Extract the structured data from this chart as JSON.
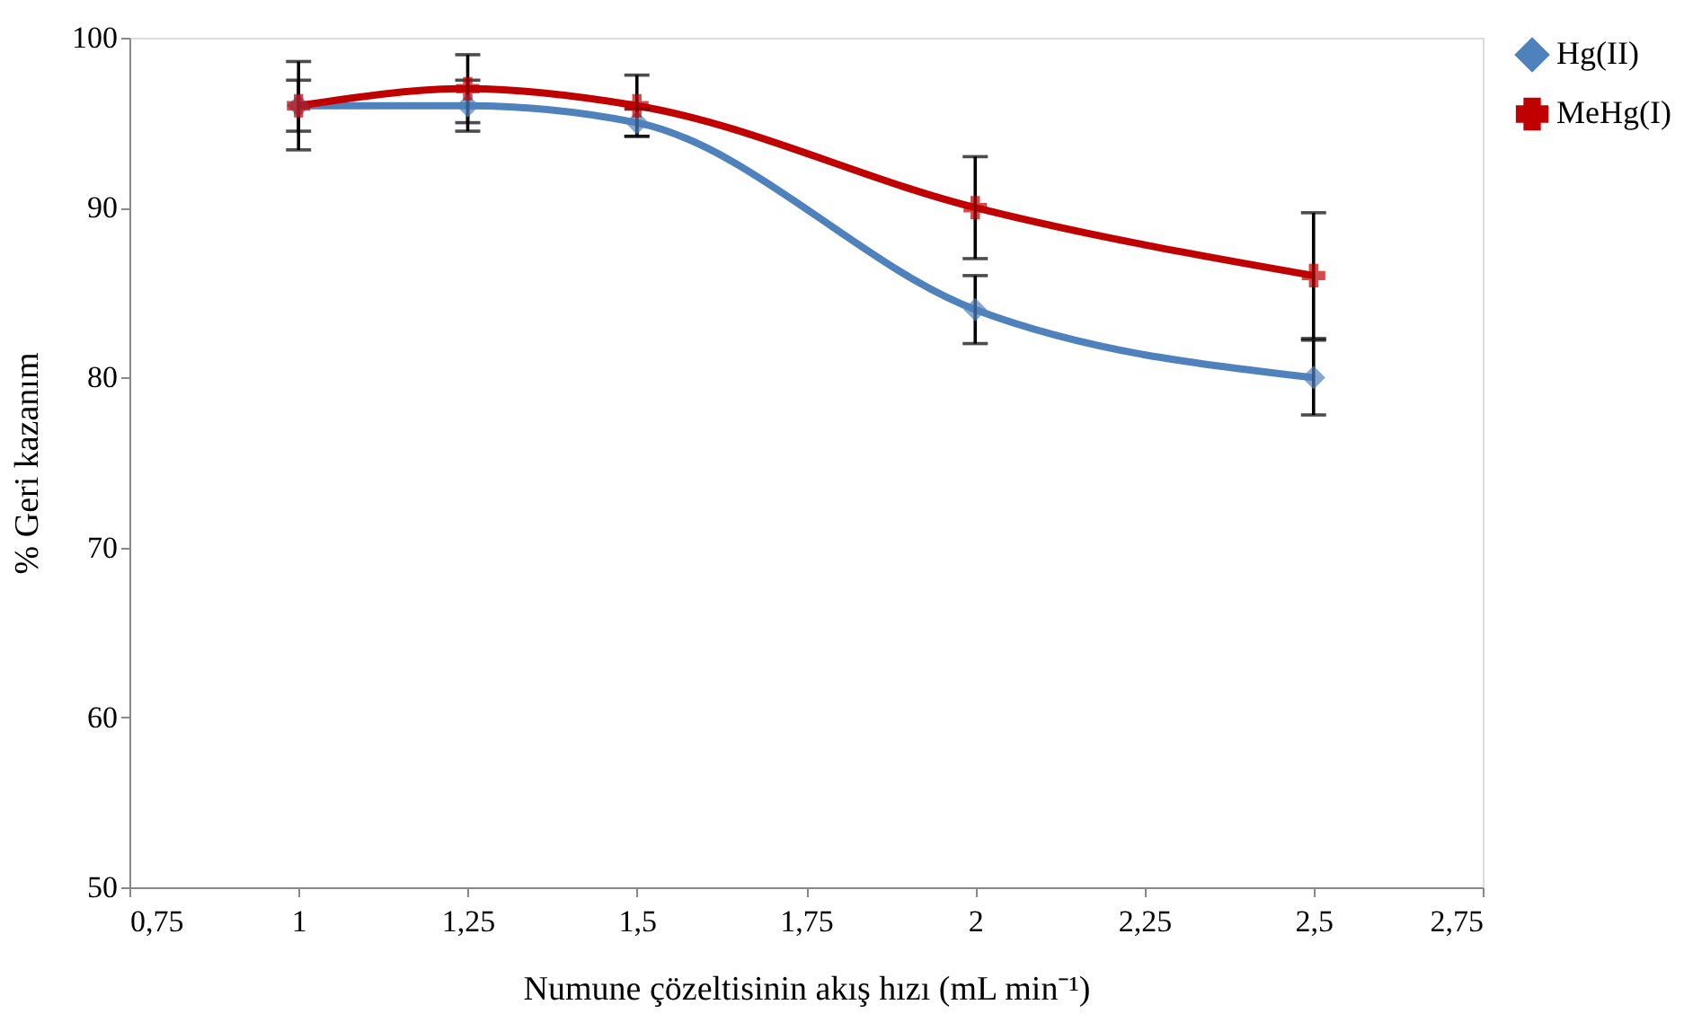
{
  "chart_data": {
    "type": "line",
    "xlabel": "Numune çözeltisinin akış hızı (mL min⁻¹)",
    "ylabel": "% Geri kazanım",
    "xlim": [
      0.75,
      2.75
    ],
    "xticks": [
      {
        "value": 0.75,
        "label": "0,75"
      },
      {
        "value": 1,
        "label": "1"
      },
      {
        "value": 1.25,
        "label": "1,25"
      },
      {
        "value": 1.5,
        "label": "1,5"
      },
      {
        "value": 1.75,
        "label": "1,75"
      },
      {
        "value": 2,
        "label": "2"
      },
      {
        "value": 2.25,
        "label": "2,25"
      },
      {
        "value": 2.5,
        "label": "2,5"
      },
      {
        "value": 2.75,
        "label": "2,75"
      }
    ],
    "ylim": [
      50,
      100
    ],
    "yticks": [
      50,
      60,
      70,
      80,
      90,
      100
    ],
    "grid": false,
    "legend": "right",
    "x": [
      1,
      1.25,
      1.5,
      2,
      2.5
    ],
    "series": [
      {
        "name": "Hg(II)",
        "color": "#4f81bd",
        "marker": "diamond",
        "values": [
          96,
          96,
          95,
          84,
          80
        ],
        "errors": [
          1.5,
          1.5,
          0.8,
          2,
          2.2
        ]
      },
      {
        "name": "MeHg(I)",
        "color": "#c00000",
        "marker": "cross",
        "values": [
          96,
          97,
          96,
          90,
          86
        ],
        "errors": [
          2.6,
          2,
          1.8,
          3,
          3.7
        ]
      }
    ]
  }
}
